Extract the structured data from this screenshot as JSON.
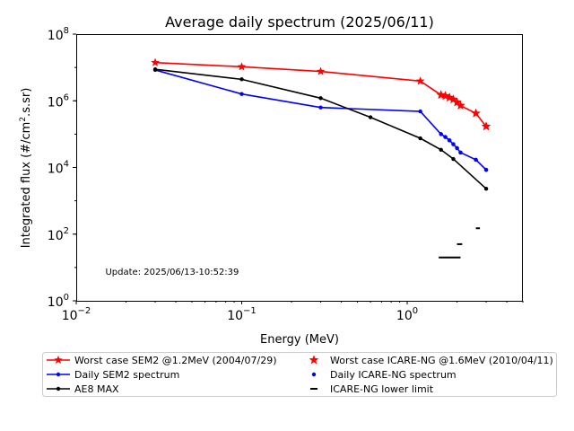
{
  "chart_data": {
    "type": "line",
    "title": "Average daily spectrum (2025/06/11)",
    "xlabel": "Energy (MeV)",
    "ylabel": "Integrated flux (#/cm2.s.sr)",
    "ylabel_parts": {
      "pre": "Integrated flux (#/cm",
      "sup": "2",
      "post": ".s.sr)"
    },
    "xscale": "log",
    "yscale": "log",
    "xlim": [
      0.01,
      5
    ],
    "ylim": [
      1,
      100000000
    ],
    "grid": false,
    "legend_placement": "bottom, outside plot, 2 columns",
    "x_ticks": [
      {
        "value": 0.01,
        "base": "10",
        "exp": "−2"
      },
      {
        "value": 0.1,
        "base": "10",
        "exp": "−1"
      },
      {
        "value": 1,
        "base": "10",
        "exp": "0"
      }
    ],
    "y_ticks": [
      {
        "value": 1,
        "base": "10",
        "exp": "0"
      },
      {
        "value": 100,
        "base": "10",
        "exp": "2"
      },
      {
        "value": 10000,
        "base": "10",
        "exp": "4"
      },
      {
        "value": 1000000,
        "base": "10",
        "exp": "6"
      },
      {
        "value": 100000000,
        "base": "10",
        "exp": "8"
      }
    ],
    "annotation": {
      "text": "Update: 2025/06/13-10:52:39",
      "x": 0.015,
      "y": 6
    },
    "series": [
      {
        "name": "Worst case SEM2 @1.2MeV (2004/07/29)",
        "color": "#ff0000",
        "marker": "star",
        "line": true,
        "points": [
          [
            0.03,
            14000000
          ],
          [
            0.1,
            10500000
          ],
          [
            0.3,
            7600000
          ],
          [
            1.2,
            3900000
          ],
          [
            1.6,
            1500000
          ],
          [
            1.7,
            1400000
          ],
          [
            1.8,
            1250000
          ],
          [
            1.9,
            1100000
          ],
          [
            2.0,
            900000
          ],
          [
            2.1,
            720000
          ],
          [
            2.6,
            420000
          ],
          [
            3.0,
            170000
          ]
        ]
      },
      {
        "name": "Daily SEM2 spectrum",
        "color": "#0000ff",
        "marker": "dot",
        "line": true,
        "points": [
          [
            0.03,
            8400000
          ],
          [
            0.1,
            1600000
          ],
          [
            0.3,
            630000
          ],
          [
            1.2,
            480000
          ],
          [
            1.6,
            100000
          ],
          [
            1.7,
            82000
          ],
          [
            1.8,
            65000
          ],
          [
            1.9,
            50000
          ],
          [
            2.0,
            38000
          ],
          [
            2.1,
            28000
          ],
          [
            2.6,
            17000
          ],
          [
            3.0,
            8500
          ]
        ]
      },
      {
        "name": "AE8 MAX",
        "color": "#000000",
        "marker": "dot",
        "line": true,
        "points": [
          [
            0.03,
            8800000
          ],
          [
            0.1,
            4400000
          ],
          [
            0.3,
            1200000
          ],
          [
            0.6,
            320000
          ],
          [
            1.2,
            75000
          ],
          [
            1.6,
            34000
          ],
          [
            1.9,
            18000
          ],
          [
            3.0,
            2300
          ]
        ]
      },
      {
        "name": "Worst case ICARE-NG @1.6MeV (2010/04/11)",
        "color": "#ff0000",
        "marker": "star",
        "line": false,
        "points": [
          [
            1.6,
            1500000
          ],
          [
            1.7,
            1400000
          ],
          [
            1.8,
            1250000
          ],
          [
            1.9,
            1100000
          ],
          [
            2.0,
            900000
          ],
          [
            2.1,
            720000
          ],
          [
            2.6,
            420000
          ],
          [
            3.0,
            170000
          ]
        ]
      },
      {
        "name": "Daily ICARE-NG spectrum",
        "color": "#0000ff",
        "marker": "dot",
        "line": false,
        "points": [
          [
            1.6,
            100000
          ],
          [
            1.7,
            82000
          ],
          [
            1.8,
            65000
          ],
          [
            1.9,
            50000
          ],
          [
            2.0,
            38000
          ],
          [
            2.1,
            28000
          ],
          [
            2.6,
            17000
          ],
          [
            3.0,
            8500
          ]
        ]
      },
      {
        "name": "ICARE-NG lower limit",
        "color": "#000000",
        "marker": "hline",
        "line": false,
        "segments": [
          [
            1.55,
            2.1,
            20
          ],
          [
            2.0,
            2.15,
            50
          ],
          [
            2.6,
            2.75,
            150
          ]
        ]
      }
    ]
  }
}
